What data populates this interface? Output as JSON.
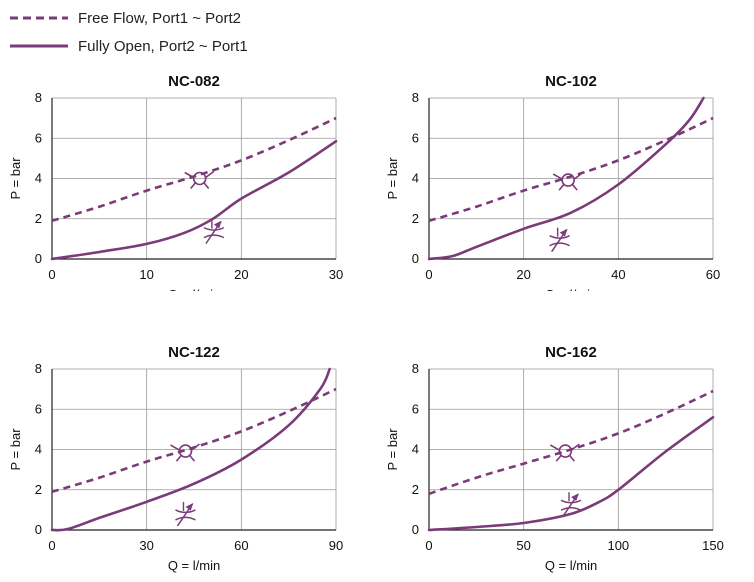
{
  "legend": {
    "free_flow": "Free Flow, Port1 ~ Port2",
    "fully_open": "Fully Open, Port2 ~ Port1"
  },
  "colors": {
    "curve": "#7b3a78",
    "grid": "#999999",
    "axis": "#222222"
  },
  "icons": {
    "free_flow": "check-valve-icon",
    "fully_open": "throttle-valve-icon"
  },
  "chart_data": [
    {
      "type": "line",
      "title": "NC-082",
      "xlabel": "Q = l/min",
      "ylabel": "P = bar",
      "xlim": [
        0,
        30
      ],
      "ylim": [
        0,
        8
      ],
      "xticks": [
        0,
        10,
        20,
        30
      ],
      "yticks": [
        0,
        2,
        4,
        6,
        8
      ],
      "grid": true,
      "series": [
        {
          "name": "Free Flow, Port1 ~ Port2",
          "style": "dashed",
          "x": [
            0,
            5,
            10,
            15,
            20,
            25,
            30
          ],
          "y": [
            1.9,
            2.6,
            3.4,
            4.1,
            4.9,
            5.9,
            7.0
          ]
        },
        {
          "name": "Fully Open, Port2 ~ Port1",
          "style": "solid",
          "x": [
            0,
            5,
            10,
            14,
            17,
            20,
            25,
            30
          ],
          "y": [
            0,
            0.35,
            0.75,
            1.3,
            2.0,
            3.0,
            4.3,
            5.85
          ]
        }
      ]
    },
    {
      "type": "line",
      "title": "NC-102",
      "xlabel": "Q = l/min",
      "ylabel": "P = bar",
      "xlim": [
        0,
        60
      ],
      "ylim": [
        0,
        8
      ],
      "xticks": [
        0,
        20,
        40,
        60
      ],
      "yticks": [
        0,
        2,
        4,
        6,
        8
      ],
      "grid": true,
      "series": [
        {
          "name": "Free Flow, Port1 ~ Port2",
          "style": "dashed",
          "x": [
            0,
            10,
            20,
            30,
            40,
            50,
            60
          ],
          "y": [
            1.9,
            2.6,
            3.4,
            4.1,
            4.9,
            5.9,
            7.0
          ]
        },
        {
          "name": "Fully Open, Port2 ~ Port1",
          "style": "solid",
          "x": [
            0,
            5,
            10,
            20,
            30,
            40,
            50,
            55,
            58
          ],
          "y": [
            0,
            0.15,
            0.6,
            1.5,
            2.3,
            3.7,
            5.7,
            6.9,
            8.0
          ]
        }
      ]
    },
    {
      "type": "line",
      "title": "NC-122",
      "xlabel": "Q = l/min",
      "ylabel": "P = bar",
      "xlim": [
        0,
        90
      ],
      "ylim": [
        0,
        8
      ],
      "xticks": [
        0,
        30,
        60,
        90
      ],
      "yticks": [
        0,
        2,
        4,
        6,
        8
      ],
      "grid": true,
      "series": [
        {
          "name": "Free Flow, Port1 ~ Port2",
          "style": "dashed",
          "x": [
            0,
            15,
            30,
            45,
            60,
            75,
            90
          ],
          "y": [
            1.9,
            2.6,
            3.4,
            4.1,
            4.9,
            5.9,
            7.0
          ]
        },
        {
          "name": "Fully Open, Port2 ~ Port1",
          "style": "solid",
          "x": [
            0,
            5,
            15,
            30,
            45,
            60,
            75,
            85,
            88
          ],
          "y": [
            0,
            0.05,
            0.6,
            1.4,
            2.3,
            3.5,
            5.2,
            7.0,
            8.0
          ]
        }
      ]
    },
    {
      "type": "line",
      "title": "NC-162",
      "xlabel": "Q = l/min",
      "ylabel": "P = bar",
      "xlim": [
        0,
        150
      ],
      "ylim": [
        0,
        8
      ],
      "xticks": [
        0,
        50,
        100,
        150
      ],
      "yticks": [
        0,
        2,
        4,
        6,
        8
      ],
      "grid": true,
      "series": [
        {
          "name": "Free Flow, Port1 ~ Port2",
          "style": "dashed",
          "x": [
            0,
            25,
            50,
            75,
            100,
            125,
            150
          ],
          "y": [
            1.8,
            2.6,
            3.3,
            4.0,
            4.8,
            5.8,
            6.9
          ]
        },
        {
          "name": "Fully Open, Port2 ~ Port1",
          "style": "solid",
          "x": [
            0,
            25,
            50,
            75,
            90,
            100,
            125,
            150
          ],
          "y": [
            0,
            0.15,
            0.35,
            0.8,
            1.4,
            2.0,
            3.9,
            5.6
          ]
        }
      ]
    }
  ]
}
